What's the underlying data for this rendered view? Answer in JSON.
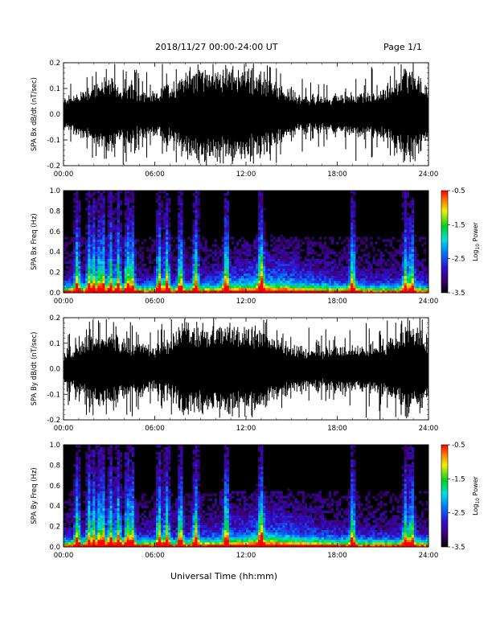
{
  "header": {
    "title": "2018/11/27  00:00-24:00 UT",
    "page": "Page 1/1"
  },
  "footer": {
    "xlabel": "Universal Time (hh:mm)"
  },
  "chart_data": [
    {
      "type": "line",
      "ylabel": "SPA Bx dB/dt (nT/sec)",
      "x_ticks": [
        "00:00",
        "06:00",
        "12:00",
        "18:00",
        "24:00"
      ],
      "y_ticks": [
        "-0.2",
        "-0.1",
        "0.0",
        "0.1",
        "0.2"
      ],
      "ylim": [
        -0.2,
        0.2
      ],
      "xlim_hours": [
        0,
        24
      ],
      "envelope": {
        "hours": [
          0,
          1,
          2,
          3,
          4,
          5,
          6,
          7,
          8,
          9,
          10,
          11,
          12,
          13,
          14,
          15,
          16,
          17,
          18,
          19,
          20,
          21,
          22,
          23,
          24
        ],
        "amplitude": [
          0.07,
          0.1,
          0.14,
          0.16,
          0.13,
          0.11,
          0.09,
          0.14,
          0.19,
          0.2,
          0.2,
          0.2,
          0.2,
          0.17,
          0.13,
          0.1,
          0.08,
          0.08,
          0.09,
          0.1,
          0.1,
          0.11,
          0.16,
          0.2,
          0.13
        ]
      },
      "color": "#000000"
    },
    {
      "type": "heatmap",
      "ylabel": "SPA Bx Freq (Hz)",
      "x_ticks": [
        "00:00",
        "06:00",
        "12:00",
        "18:00",
        "24:00"
      ],
      "y_ticks": [
        "0.0",
        "0.2",
        "0.4",
        "0.6",
        "0.8",
        "1.0"
      ],
      "ylim": [
        0,
        1.0
      ],
      "xlim_hours": [
        0,
        24
      ],
      "colorbar": {
        "label": "Log10 Power",
        "ticks": [
          "-0.5",
          "-1.5",
          "-2.5",
          "-3.5"
        ],
        "range": [
          -3.5,
          -0.5
        ]
      }
    },
    {
      "type": "line",
      "ylabel": "SPA By dB/dt (nT/sec)",
      "x_ticks": [
        "00:00",
        "06:00",
        "12:00",
        "18:00",
        "24:00"
      ],
      "y_ticks": [
        "-0.2",
        "-0.1",
        "0.0",
        "0.1",
        "0.2"
      ],
      "ylim": [
        -0.2,
        0.2
      ],
      "xlim_hours": [
        0,
        24
      ],
      "envelope": {
        "hours": [
          0,
          1,
          2,
          3,
          4,
          5,
          6,
          7,
          8,
          9,
          10,
          11,
          12,
          13,
          14,
          15,
          16,
          17,
          18,
          19,
          20,
          21,
          22,
          23,
          24
        ],
        "amplitude": [
          0.08,
          0.11,
          0.15,
          0.17,
          0.14,
          0.12,
          0.1,
          0.15,
          0.2,
          0.2,
          0.2,
          0.2,
          0.2,
          0.18,
          0.14,
          0.11,
          0.09,
          0.09,
          0.1,
          0.11,
          0.11,
          0.12,
          0.17,
          0.2,
          0.14
        ]
      },
      "color": "#000000"
    },
    {
      "type": "heatmap",
      "ylabel": "SPA By Freq (Hz)",
      "x_ticks": [
        "00:00",
        "06:00",
        "12:00",
        "18:00",
        "24:00"
      ],
      "y_ticks": [
        "0.0",
        "0.2",
        "0.4",
        "0.6",
        "0.8",
        "1.0"
      ],
      "ylim": [
        0,
        1.0
      ],
      "xlim_hours": [
        0,
        24
      ],
      "colorbar": {
        "label": "Log10 Power",
        "ticks": [
          "-0.5",
          "-1.5",
          "-2.5",
          "-3.5"
        ],
        "range": [
          -3.5,
          -0.5
        ]
      }
    }
  ]
}
